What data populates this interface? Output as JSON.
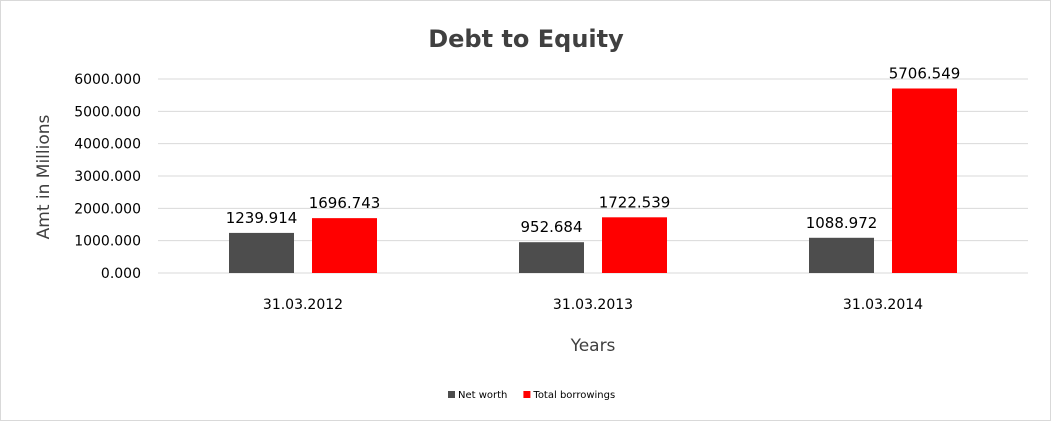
{
  "chart_data": {
    "type": "bar",
    "title": "Debt to Equity",
    "xlabel": "Years",
    "ylabel": "Amt in Millions",
    "categories": [
      "31.03.2012",
      "31.03.2013",
      "31.03.2014"
    ],
    "series": [
      {
        "name": "Net worth",
        "color": "#4d4d4d",
        "values": [
          1239.914,
          952.684,
          1088.972
        ],
        "labels": [
          "1239.914",
          "952.684",
          "1088.972"
        ]
      },
      {
        "name": "Total borrowings",
        "color": "#ff0000",
        "values": [
          1696.743,
          1722.539,
          5706.549
        ],
        "labels": [
          "1696.743",
          "1722.539",
          "5706.549"
        ]
      }
    ],
    "ylim": [
      0,
      6000
    ],
    "yticks": [
      "0.000",
      "1000.000",
      "2000.000",
      "3000.000",
      "4000.000",
      "5000.000",
      "6000.000"
    ],
    "grid": true,
    "legend_position": "bottom"
  }
}
